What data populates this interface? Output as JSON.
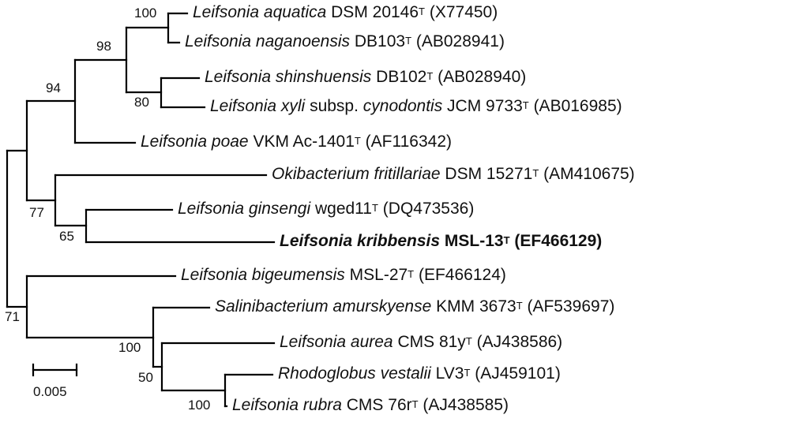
{
  "taxa": [
    {
      "genus": "Leifsonia",
      "species": "aquatica",
      "middle": "",
      "strain": "DSM 20146",
      "accession": "(X77450)",
      "bold": false
    },
    {
      "genus": "Leifsonia",
      "species": "naganoensis",
      "middle": "",
      "strain": "DB103",
      "accession": "(AB028941)",
      "bold": false
    },
    {
      "genus": "Leifsonia",
      "species": "shinshuensis",
      "middle": "",
      "strain": "DB102",
      "accession": "(AB028940)",
      "bold": false
    },
    {
      "genus": "Leifsonia",
      "species": "xyli",
      "middle": "subsp.",
      "species2": "cynodontis",
      "strain": "JCM 9733",
      "accession": "(AB016985)",
      "bold": false
    },
    {
      "genus": "Leifsonia",
      "species": "poae",
      "middle": "",
      "strain": "VKM Ac-1401",
      "accession": "(AF116342)",
      "bold": false
    },
    {
      "genus": "Okibacterium",
      "species": "fritillariae",
      "middle": "",
      "strain": "DSM 15271",
      "accession": "(AM410675)",
      "bold": false
    },
    {
      "genus": "Leifsonia",
      "species": "ginsengi",
      "middle": "",
      "strain": "wged11",
      "accession": "(DQ473536)",
      "bold": false
    },
    {
      "genus": "Leifsonia",
      "species": "kribbensis",
      "middle": "",
      "strain": "MSL-13",
      "accession": "(EF466129)",
      "bold": true
    },
    {
      "genus": "Leifsonia",
      "species": "bigeumensis",
      "middle": "",
      "strain": "MSL-27",
      "accession": "(EF466124)",
      "bold": false
    },
    {
      "genus": "Salinibacterium",
      "species": "amurskyense",
      "middle": "",
      "strain": "KMM 3673",
      "accession": "(AF539697)",
      "bold": false
    },
    {
      "genus": "Leifsonia",
      "species": "aurea",
      "middle": "",
      "strain": "CMS 81y",
      "accession": "(AJ438586)",
      "bold": false
    },
    {
      "genus": "Rhodoglobus",
      "species": "vestalii",
      "middle": "",
      "strain": "LV3",
      "accession": "(AJ459101)",
      "bold": false
    },
    {
      "genus": "Leifsonia",
      "species": "rubra",
      "middle": "",
      "strain": "CMS 76r",
      "accession": "(AJ438585)",
      "bold": false
    }
  ],
  "type_strain_mark": "T",
  "bootstrap": [
    "100",
    "98",
    "94",
    "80",
    "77",
    "65",
    "71",
    "100",
    "50",
    "100"
  ],
  "scale_bar": {
    "label": "0.005"
  }
}
